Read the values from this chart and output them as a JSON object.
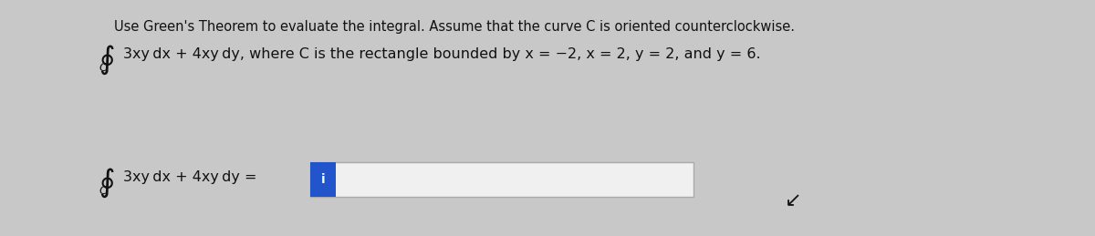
{
  "background_color": "#c8c8c8",
  "panel_color": "#e0e0e0",
  "title_text": "Use Green's Theorem to evaluate the integral. Assume that the curve C is oriented counterclockwise.",
  "problem_line1": "3xy dx + 4xy dy, where C is the rectangle bounded by x = −2, x = 2, y = 2, and y = 6.",
  "answer_label": "3xy dx + 4xy dy =",
  "input_box_color": "#f0f0f0",
  "input_highlight_color": "#2255cc",
  "input_highlight_text": "i",
  "title_fontsize": 10.5,
  "body_fontsize": 11.5,
  "text_color": "#111111",
  "fig_width": 12.0,
  "fig_height": 2.59,
  "dpi": 100
}
